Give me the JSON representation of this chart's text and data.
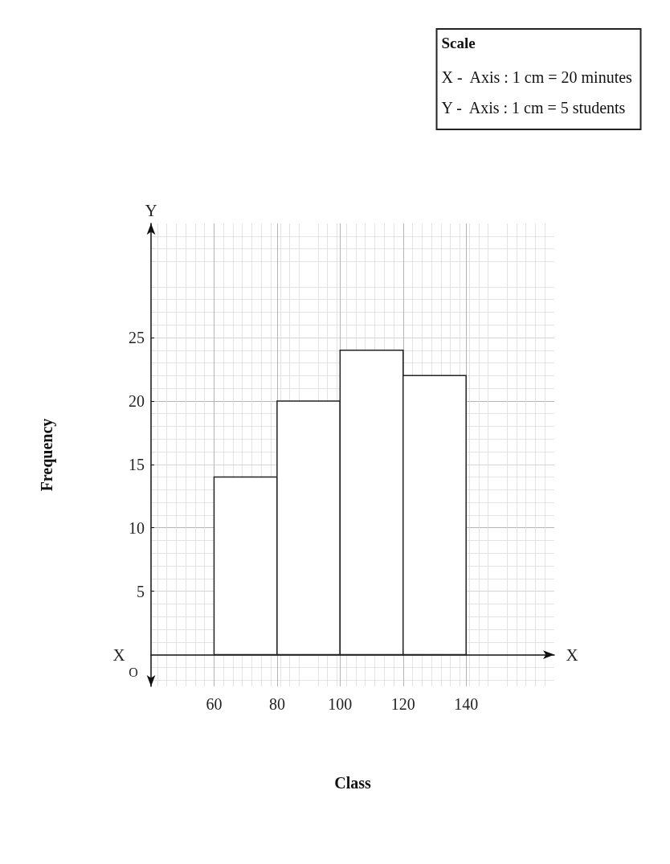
{
  "chart_data": {
    "type": "histogram",
    "title": "Scale",
    "subtitle": "X -  Axis : 1 cm = 20 minutes\nY -  Axis : 1 cm = 5 students",
    "xlabel": "Class",
    "ylabel": "Frequency",
    "bins": [
      60,
      80,
      100,
      120,
      140
    ],
    "values": [
      14,
      20,
      24,
      22
    ],
    "color": "#ffffff",
    "xlim": [
      40,
      168
    ],
    "xticks": [
      60,
      80,
      100,
      120,
      140
    ],
    "ylim": [
      -2.5,
      34
    ],
    "yticks": [
      5,
      10,
      15,
      20,
      25
    ],
    "grid": true,
    "annotations": [
      "O",
      "X",
      "X",
      "Y"
    ]
  }
}
